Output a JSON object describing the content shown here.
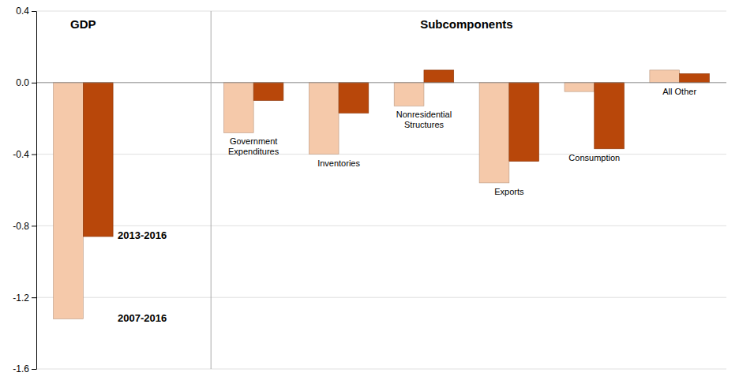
{
  "chart_data": {
    "type": "bar",
    "categories": [
      null,
      "Government\nExpenditures",
      "Inventories",
      "Nonresidential\nStructures",
      "Exports",
      "Consumption",
      "All Other"
    ],
    "series": [
      {
        "name": "2007-2016",
        "color": "#f5c9aa",
        "values": [
          -1.32,
          -0.28,
          -0.4,
          -0.13,
          -0.56,
          -0.05,
          0.07
        ]
      },
      {
        "name": "2013-2016",
        "color": "#b8470a",
        "values": [
          -0.86,
          -0.1,
          -0.17,
          0.07,
          -0.44,
          -0.37,
          0.05
        ]
      }
    ],
    "annotations": [
      "GDP",
      "Subcomponents"
    ],
    "ylim": [
      -1.6,
      0.4
    ],
    "yticks": [
      -1.6,
      -1.2,
      -0.8,
      -0.4,
      {
        "value": 0.0,
        "label": "0.0"
      },
      0.4
    ],
    "grid": true
  }
}
